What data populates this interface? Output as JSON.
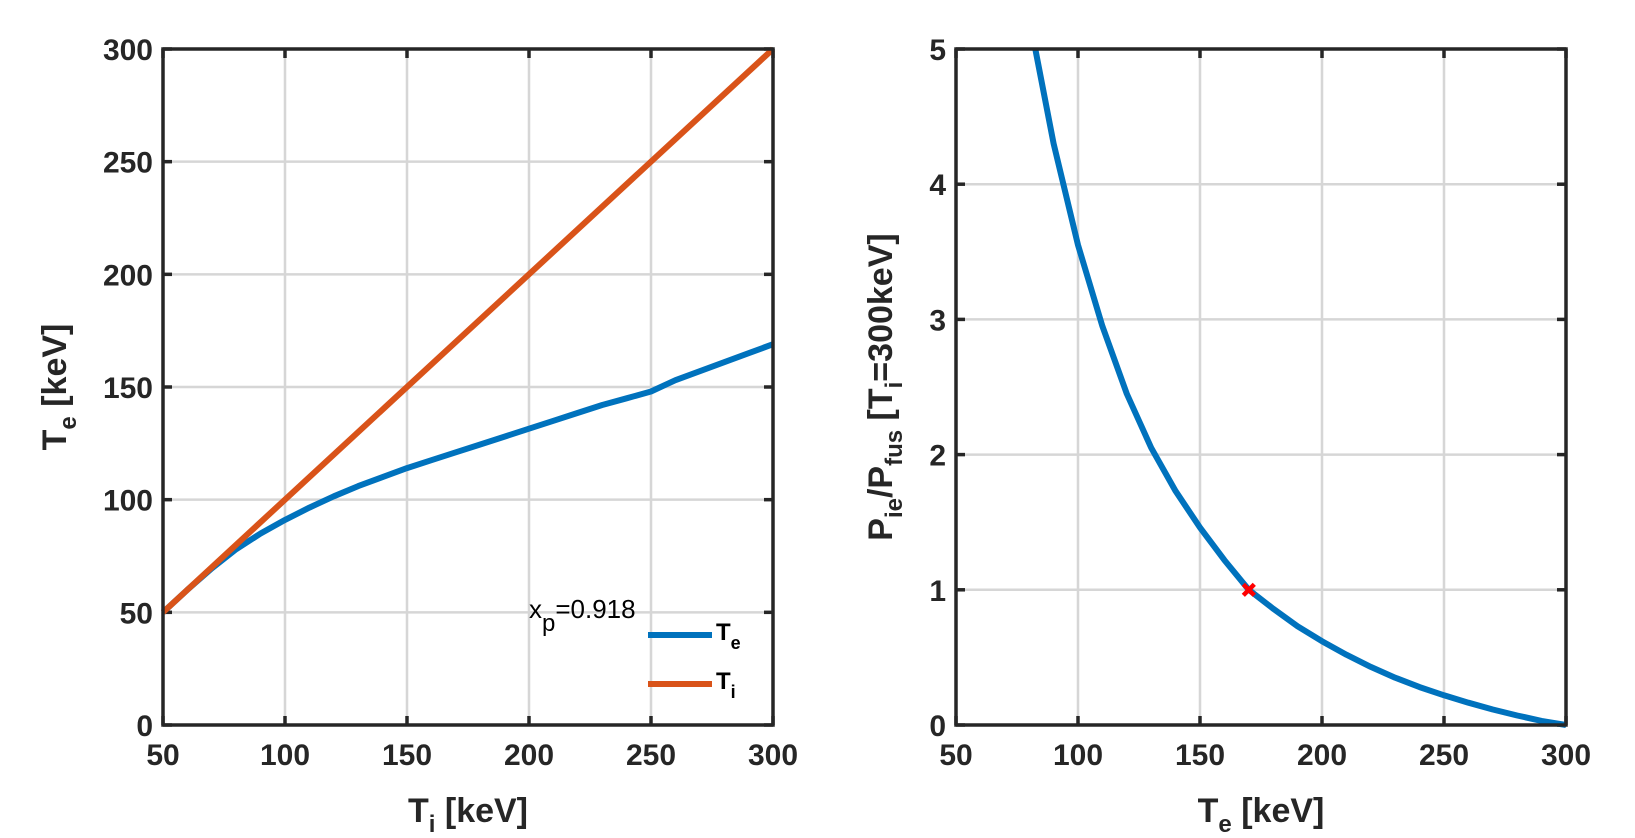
{
  "colors": {
    "te": "#0072BD",
    "ti": "#D95319",
    "marker": "#FF0000",
    "axis": "#262626",
    "grid": "#D6D6D6"
  },
  "chart_data": [
    {
      "type": "line",
      "xlabel": {
        "main": "T",
        "sub": "i",
        "rest": " [keV]"
      },
      "ylabel": {
        "main": "T",
        "sub": "e",
        "rest": " [keV]"
      },
      "xlim": [
        50,
        300
      ],
      "ylim": [
        0,
        300
      ],
      "xticks": [
        "50",
        "100",
        "150",
        "200",
        "250",
        "300"
      ],
      "yticks": [
        "0",
        "50",
        "100",
        "150",
        "200",
        "250",
        "300"
      ],
      "grid": true,
      "annotation": {
        "main": "x",
        "sub": "p",
        "rest": "=0.918"
      },
      "legend": {
        "position": "bottom-right",
        "entries": [
          {
            "main": "T",
            "sub": "e",
            "series": "Te"
          },
          {
            "main": "T",
            "sub": "i",
            "series": "Ti"
          }
        ]
      },
      "series": [
        {
          "name": "Te",
          "color": "#0072BD",
          "x": [
            50,
            60,
            70,
            80,
            90,
            100,
            110,
            120,
            130,
            140,
            150,
            160,
            170,
            180,
            190,
            200,
            210,
            220,
            230,
            240,
            250,
            260,
            270,
            280,
            290,
            300
          ],
          "y": [
            50,
            60,
            69.5,
            78,
            85,
            91,
            96.5,
            101.5,
            106,
            110,
            114,
            117.5,
            121,
            124.5,
            128,
            131.5,
            135,
            138.5,
            142,
            145,
            148,
            153,
            157,
            161,
            165,
            169
          ]
        },
        {
          "name": "Ti",
          "color": "#D95319",
          "x": [
            50,
            300
          ],
          "y": [
            50,
            300
          ]
        }
      ]
    },
    {
      "type": "line",
      "xlabel": {
        "main": "T",
        "sub": "e",
        "rest": " [keV]"
      },
      "ylabel": {
        "p1": "P",
        "s1": "ie",
        "p2": "/P",
        "s2": "fus",
        "p3": " [T",
        "s3": "i",
        "p4": "=300keV]"
      },
      "xlim": [
        50,
        300
      ],
      "ylim": [
        0,
        5
      ],
      "xticks": [
        "50",
        "100",
        "150",
        "200",
        "250",
        "300"
      ],
      "yticks": [
        "0",
        "1",
        "2",
        "3",
        "4",
        "5"
      ],
      "grid": true,
      "series": [
        {
          "name": "Pie/Pfus",
          "color": "#0072BD",
          "x": [
            82.5,
            90,
            100,
            110,
            120,
            130,
            140,
            150,
            160,
            170,
            180,
            190,
            200,
            210,
            220,
            230,
            240,
            250,
            260,
            270,
            280,
            290,
            300
          ],
          "y": [
            5.0,
            4.3,
            3.55,
            2.95,
            2.45,
            2.05,
            1.73,
            1.46,
            1.22,
            1.0,
            0.86,
            0.73,
            0.62,
            0.52,
            0.43,
            0.35,
            0.28,
            0.22,
            0.165,
            0.115,
            0.07,
            0.03,
            0.0
          ]
        }
      ],
      "marker": {
        "x": 170,
        "y": 1.0,
        "symbol": "x",
        "color": "#FF0000"
      }
    }
  ]
}
